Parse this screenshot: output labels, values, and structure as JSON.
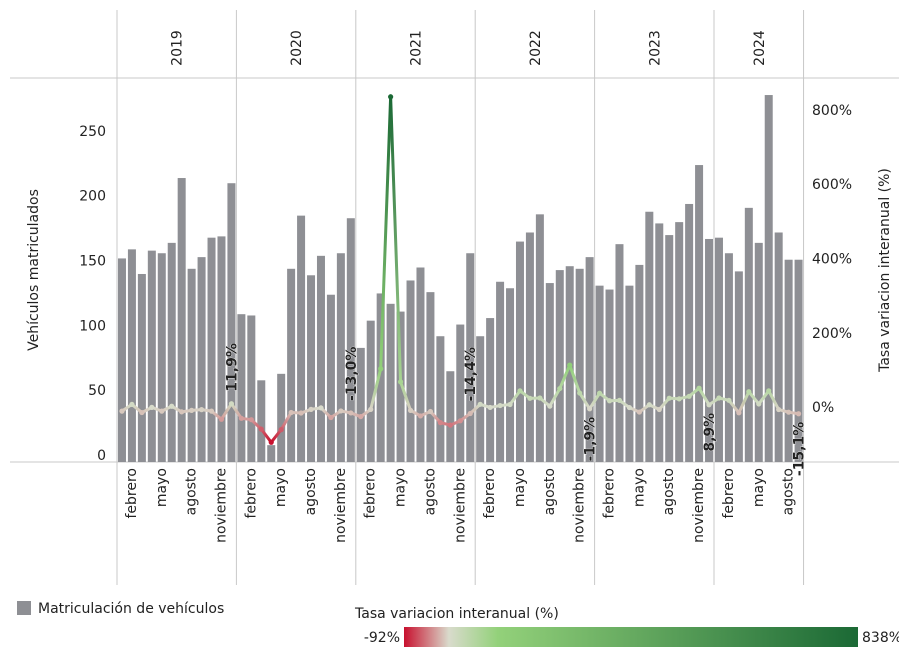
{
  "chart_data": {
    "type": "bar-line",
    "groups": [
      "2019",
      "2020",
      "2021",
      "2022",
      "2023",
      "2024"
    ],
    "categories": [
      null,
      "febrero",
      null,
      null,
      "mayo",
      null,
      null,
      "agosto",
      null,
      null,
      "noviembre",
      null,
      null,
      "febrero",
      null,
      null,
      "mayo",
      null,
      null,
      "agosto",
      null,
      null,
      "noviembre",
      null,
      null,
      "febrero",
      null,
      null,
      "mayo",
      null,
      null,
      "agosto",
      null,
      null,
      "noviembre",
      null,
      null,
      "febrero",
      null,
      null,
      "mayo",
      null,
      null,
      "agosto",
      null,
      null,
      "noviembre",
      null,
      null,
      "febrero",
      null,
      null,
      "mayo",
      null,
      null,
      "agosto",
      null,
      null,
      "noviembre",
      null,
      null,
      "febrero",
      null,
      null,
      "mayo",
      null,
      null,
      "agosto",
      null
    ],
    "ylabel": "Vehículos matriculados",
    "y2label": "Tasa variacion interanual (%)",
    "ylim": [
      0,
      300
    ],
    "yticks": [
      0,
      50,
      100,
      150,
      200,
      250
    ],
    "y2lim": [
      -145,
      902
    ],
    "y2ticks": [
      {
        "value": 0,
        "label": "0%"
      },
      {
        "value": 200,
        "label": "200%"
      },
      {
        "value": 400,
        "label": "400%"
      },
      {
        "value": 600,
        "label": "600%"
      },
      {
        "value": 800,
        "label": "800%"
      }
    ],
    "series": [
      {
        "name": "Matriculación de vehículos",
        "type": "bar",
        "color": "#8e8f94",
        "values": [
          157,
          164,
          145,
          163,
          161,
          169,
          219,
          149,
          158,
          173,
          174,
          215,
          114,
          113,
          63,
          13,
          68,
          149,
          190,
          144,
          159,
          129,
          161,
          188,
          88,
          109,
          130,
          122,
          116,
          140,
          150,
          131,
          97,
          70,
          106,
          161,
          97,
          111,
          139,
          134,
          170,
          177,
          191,
          138,
          148,
          151,
          149,
          158,
          136,
          133,
          168,
          136,
          152,
          193,
          184,
          175,
          185,
          199,
          229,
          172,
          173,
          161,
          147,
          196,
          169,
          283,
          177,
          156,
          156
        ]
      },
      {
        "name": "Tasa variacion interanual (%)",
        "type": "line",
        "axis": "y2",
        "values": [
          -8,
          10,
          -12,
          2,
          -8,
          5,
          -10,
          -6,
          -4,
          -8,
          -30,
          11.9,
          -27.4,
          -31.1,
          -56.6,
          -92,
          -57.8,
          -11.8,
          -13.2,
          -3.4,
          0.6,
          -25.4,
          -7.5,
          -13.0,
          -22.8,
          -3.5,
          106,
          838,
          70.6,
          -6,
          -21,
          -9,
          -39,
          -45.7,
          -34.2,
          -14.4,
          10.2,
          1.8,
          6.9,
          9.8,
          46.6,
          26.4,
          27.3,
          5.3,
          52.6,
          115.7,
          40.6,
          -1.9,
          40.2,
          19.8,
          20.9,
          1.5,
          -10.6,
          9.0,
          -3.7,
          26.8,
          25,
          31.8,
          53.7,
          8.9,
          27.2,
          21.1,
          -12.5,
          44.1,
          11.2,
          46.6,
          -3.8,
          -10.9,
          -15.1
        ],
        "value_labels": [
          null,
          null,
          null,
          null,
          null,
          null,
          null,
          null,
          null,
          null,
          null,
          "11,9%",
          null,
          null,
          null,
          null,
          null,
          null,
          null,
          null,
          null,
          null,
          null,
          "-13,0%",
          null,
          null,
          null,
          null,
          null,
          null,
          null,
          null,
          null,
          null,
          null,
          "-14,4%",
          null,
          null,
          null,
          null,
          null,
          null,
          null,
          null,
          null,
          null,
          null,
          "-1,9%",
          null,
          null,
          null,
          null,
          null,
          null,
          null,
          null,
          null,
          null,
          null,
          "8,9%",
          null,
          null,
          null,
          null,
          null,
          null,
          null,
          null,
          "-15,1%"
        ]
      }
    ],
    "colorbar": {
      "title": "Tasa variacion interanual (%)",
      "min": {
        "value": -92,
        "label": "-92%"
      },
      "max": {
        "value": 838,
        "label": "838%"
      }
    },
    "colorscale": [
      {
        "value": -92,
        "color": "#c8102e"
      },
      {
        "value": 0,
        "color": "#d9dbcc"
      },
      {
        "value": 100,
        "color": "#93d17a"
      },
      {
        "value": 838,
        "color": "#1b6935"
      }
    ]
  }
}
